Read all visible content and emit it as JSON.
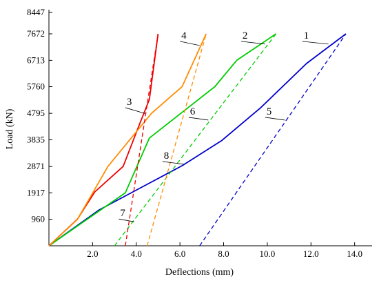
{
  "chart_data": {
    "type": "line",
    "title": "",
    "xlabel": "Deflections (mm)",
    "ylabel": "Load (kN)",
    "xlim": [
      0,
      14.8
    ],
    "ylim": [
      0,
      8447
    ],
    "x_ticks": [
      2.0,
      4.0,
      6.0,
      8.0,
      10.0,
      12.0,
      14.0
    ],
    "x_tick_labels": [
      "2.0",
      "4.0",
      "6.0",
      "8.0",
      "10.0",
      "12.0",
      "14.0"
    ],
    "y_ticks": [
      960,
      1917,
      2871,
      3835,
      4795,
      5760,
      6713,
      7672,
      8447
    ],
    "y_tick_labels": [
      "960",
      "1917",
      "2871",
      "3835",
      "4795",
      "5760",
      "6713",
      "7672",
      "8447"
    ],
    "grid": false,
    "series": [
      {
        "name": "1",
        "color": "#0000cc",
        "dash": "solid",
        "points": [
          [
            0,
            0
          ],
          [
            2.3,
            1300
          ],
          [
            4.2,
            2100
          ],
          [
            6.1,
            2900
          ],
          [
            7.9,
            3800
          ],
          [
            9.7,
            5000
          ],
          [
            11.8,
            6600
          ],
          [
            13.6,
            7672
          ]
        ]
      },
      {
        "name": "2",
        "color": "#00cc00",
        "dash": "solid",
        "points": [
          [
            0,
            0
          ],
          [
            3.5,
            1917
          ],
          [
            4.6,
            3900
          ],
          [
            7.6,
            5760
          ],
          [
            8.6,
            6713
          ],
          [
            10.4,
            7672
          ]
        ]
      },
      {
        "name": "3",
        "color": "#ee0000",
        "dash": "solid",
        "points": [
          [
            0,
            0
          ],
          [
            1.3,
            960
          ],
          [
            2.1,
            1950
          ],
          [
            3.4,
            2871
          ],
          [
            4.1,
            4300
          ],
          [
            4.6,
            5300
          ],
          [
            5.0,
            7672
          ]
        ]
      },
      {
        "name": "4",
        "color": "#ff8c00",
        "dash": "solid",
        "points": [
          [
            0,
            0
          ],
          [
            1.3,
            950
          ],
          [
            2.7,
            2871
          ],
          [
            4.7,
            4795
          ],
          [
            6.1,
            5760
          ],
          [
            7.2,
            7672
          ]
        ]
      },
      {
        "name": "5",
        "color": "#0000cc",
        "dash": "dashed",
        "points": [
          [
            6.9,
            0
          ],
          [
            13.6,
            7672
          ]
        ]
      },
      {
        "name": "6",
        "color": "#00cc00",
        "dash": "dashed",
        "points": [
          [
            3.0,
            0
          ],
          [
            10.4,
            7672
          ]
        ]
      },
      {
        "name": "7",
        "color": "#ee0000",
        "dash": "dashed",
        "points": [
          [
            3.5,
            0
          ],
          [
            5.0,
            7672
          ]
        ]
      },
      {
        "name": "8",
        "color": "#ff8c00",
        "dash": "dashed",
        "points": [
          [
            4.5,
            0
          ],
          [
            7.2,
            7672
          ]
        ]
      }
    ],
    "series_labels": [
      {
        "text": "1",
        "leader_from": [
          11.6,
          7400
        ],
        "leader_to": [
          12.8,
          7300
        ]
      },
      {
        "text": "2",
        "leader_from": [
          8.8,
          7400
        ],
        "leader_to": [
          9.9,
          7300
        ]
      },
      {
        "text": "3",
        "leader_from": [
          3.5,
          5000
        ],
        "leader_to": [
          4.4,
          4790
        ]
      },
      {
        "text": "4",
        "leader_from": [
          6.0,
          7400
        ],
        "leader_to": [
          6.9,
          7250
        ]
      },
      {
        "text": "5",
        "leader_from": [
          9.9,
          4650
        ],
        "leader_to": [
          10.8,
          4550
        ]
      },
      {
        "text": "6",
        "leader_from": [
          6.4,
          4650
        ],
        "leader_to": [
          7.3,
          4550
        ]
      },
      {
        "text": "7",
        "leader_from": [
          3.2,
          970
        ],
        "leader_to": [
          3.9,
          870
        ]
      },
      {
        "text": "8",
        "leader_from": [
          5.2,
          3050
        ],
        "leader_to": [
          6.2,
          2950
        ]
      }
    ]
  }
}
